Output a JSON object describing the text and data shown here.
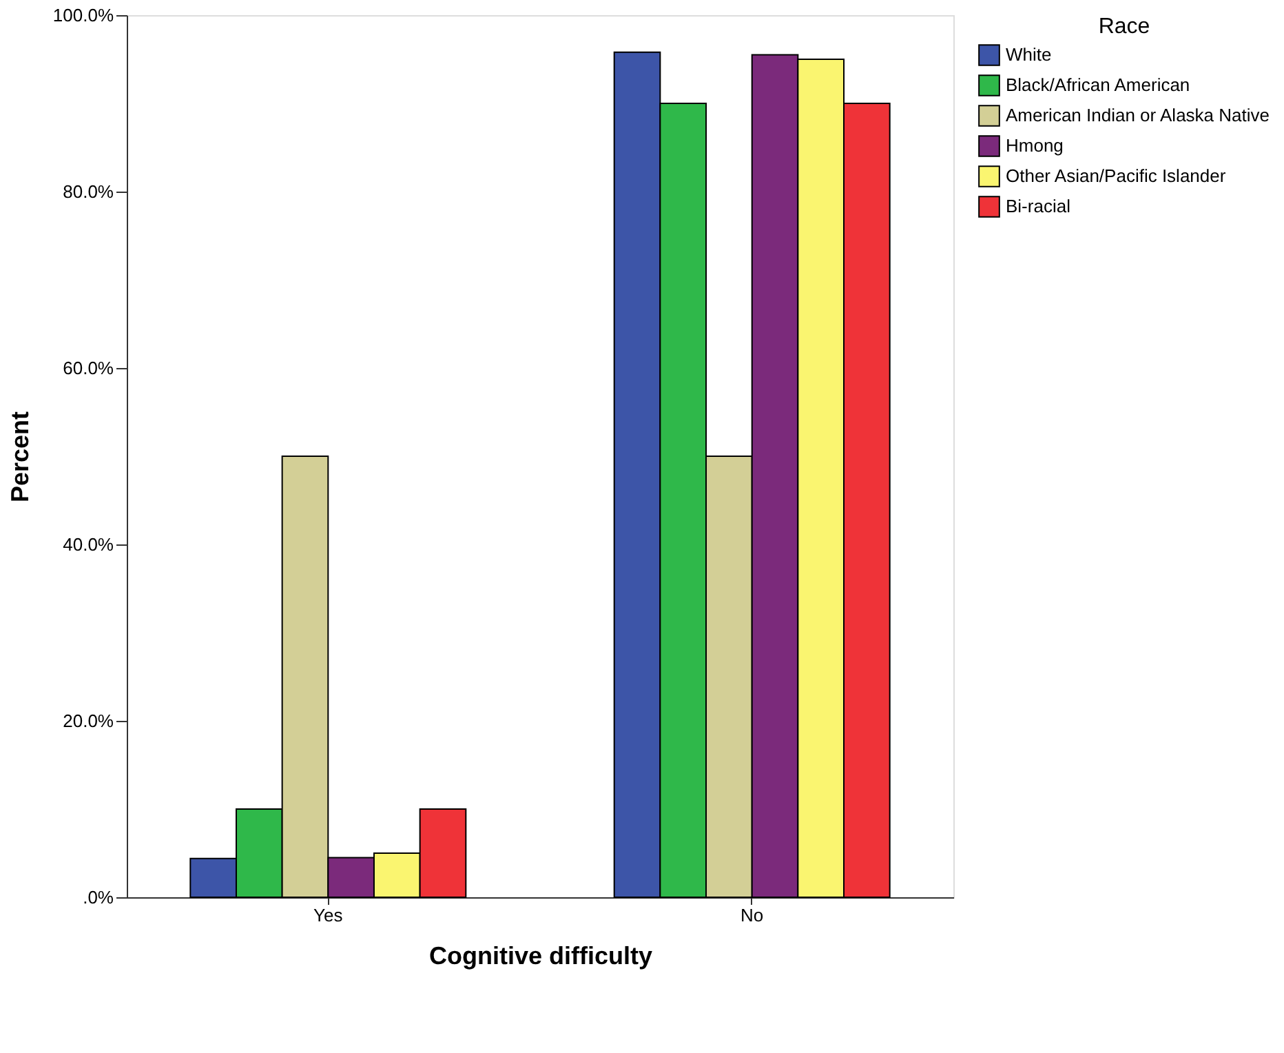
{
  "chart_data": {
    "type": "bar",
    "xlabel": "Cognitive difficulty",
    "ylabel": "Percent",
    "legend_title": "Race",
    "legend": "right",
    "categories": [
      "Yes",
      "No"
    ],
    "series": [
      {
        "name": "White",
        "color": "#3d55a8",
        "values": [
          4.4,
          95.8
        ]
      },
      {
        "name": "Black/African American",
        "color": "#2fb84a",
        "values": [
          10.0,
          90.0
        ]
      },
      {
        "name": "American Indian or Alaska Native",
        "color": "#d3cf96",
        "values": [
          50.0,
          50.0
        ]
      },
      {
        "name": "Hmong",
        "color": "#7b2a7b",
        "values": [
          4.5,
          95.5
        ]
      },
      {
        "name": "Other Asian/Pacific Islander",
        "color": "#faf570",
        "values": [
          5.0,
          95.0
        ]
      },
      {
        "name": "Bi-racial",
        "color": "#ef3338",
        "values": [
          10.0,
          90.0
        ]
      }
    ],
    "ylim": [
      0,
      100
    ],
    "yticks": [
      {
        "value": 0,
        "label": ".0%"
      },
      {
        "value": 20,
        "label": "20.0%"
      },
      {
        "value": 40,
        "label": "40.0%"
      },
      {
        "value": 60,
        "label": "60.0%"
      },
      {
        "value": 80,
        "label": "80.0%"
      },
      {
        "value": 100,
        "label": "100.0%"
      }
    ],
    "grid": false
  }
}
